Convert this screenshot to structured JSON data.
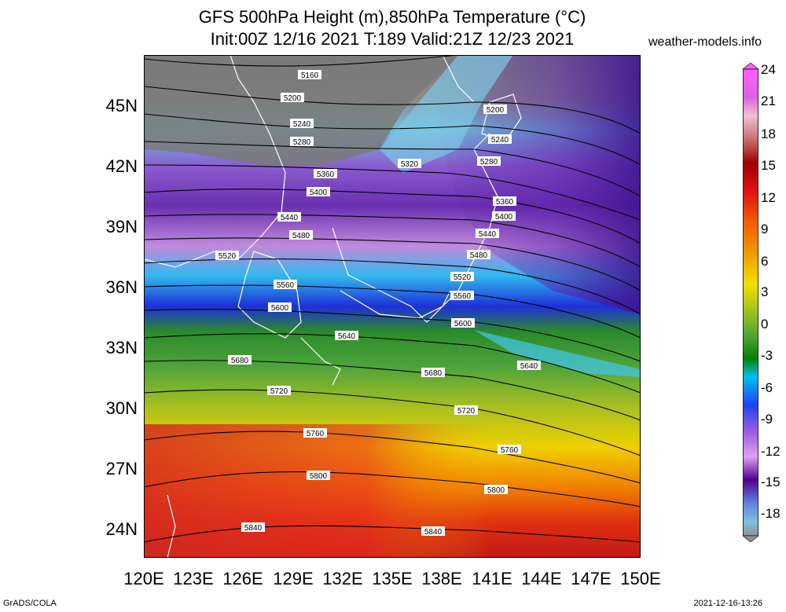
{
  "title_line1": "GFS 500hPa Height (m),850hPa Temperature (°C)",
  "title_line2": "Init:00Z 12/16 2021 T:189 Valid:21Z 12/23 2021",
  "site": "weather-models.info",
  "lat_labels": [
    "45N",
    "42N",
    "39N",
    "36N",
    "33N",
    "30N",
    "27N",
    "24N"
  ],
  "lon_labels": [
    "120E",
    "123E",
    "126E",
    "129E",
    "132E",
    "135E",
    "138E",
    "141E",
    "144E",
    "147E",
    "150E"
  ],
  "colorbar_labels": [
    "24",
    "21",
    "18",
    "15",
    "12",
    "9",
    "6",
    "3",
    "0",
    "-3",
    "-6",
    "-9",
    "-12",
    "-15",
    "-18"
  ],
  "footer_left": "GrADS/COLA",
  "footer_right": "2021-12-16-13:26",
  "contour_labels": [
    "5160",
    "5200",
    "5200",
    "5240",
    "5240",
    "5280",
    "5280",
    "5320",
    "5360",
    "5360",
    "5400",
    "5400",
    "5440",
    "5440",
    "5480",
    "5480",
    "5520",
    "5520",
    "5560",
    "5560",
    "5600",
    "5600",
    "5640",
    "5640",
    "5680",
    "5680",
    "5720",
    "5720",
    "5760",
    "5760",
    "5800",
    "5800",
    "5840",
    "5840"
  ]
}
